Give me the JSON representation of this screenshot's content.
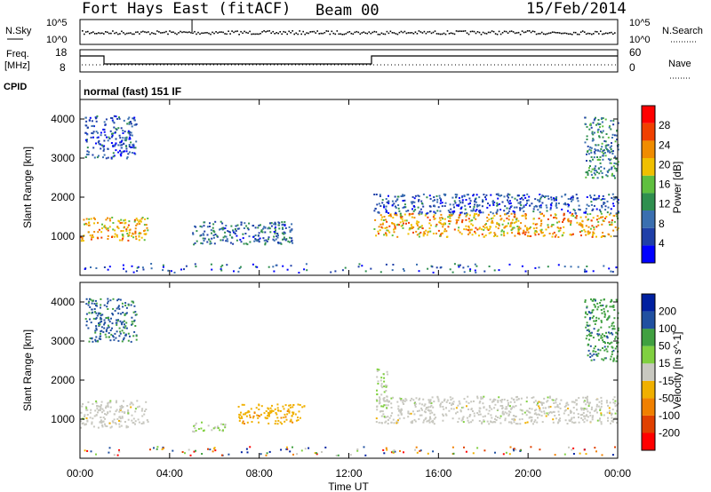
{
  "header": {
    "station": "Fort Hays East (fitACF)",
    "beam": "Beam 00",
    "date": "15/Feb/2014"
  },
  "top_panels": {
    "noise": {
      "left_label": "N.Sky",
      "left_ticks": [
        "10^5",
        "10^0"
      ],
      "right_label": "N.Search",
      "right_ticks": [
        "10^5",
        "10^0"
      ]
    },
    "freq": {
      "left_label_1": "Freq.",
      "left_label_2": "[MHz]",
      "left_ticks": [
        "18",
        "8"
      ],
      "right_label": "Nave",
      "right_ticks": [
        "60",
        "0"
      ]
    },
    "cpid": {
      "label": "CPID",
      "text": "normal (fast) 151 IF"
    }
  },
  "colors": {
    "power": [
      "#0000ff",
      "#1f3fa8",
      "#3a6fb0",
      "#2f8f4f",
      "#5fbf3f",
      "#f0c000",
      "#f08c00",
      "#f04000",
      "#ff0000"
    ],
    "velocity": [
      "#ff0000",
      "#e04000",
      "#f08000",
      "#f0b000",
      "#c8c8c0",
      "#80d040",
      "#40a040",
      "#2050a0",
      "#0020a0"
    ]
  },
  "chart_data": [
    {
      "type": "heatmap",
      "name": "power-panel",
      "ylabel": "Slant Range [km]",
      "xlabel": "",
      "xlim": [
        "00:00",
        "24:00"
      ],
      "ylim": [
        0,
        4500
      ],
      "y_ticks": [
        1000,
        2000,
        3000,
        4000
      ],
      "colorbar": {
        "label": "Power [dB]",
        "ticks": [
          "4",
          "8",
          "12",
          "16",
          "20",
          "24",
          "28"
        ],
        "range": [
          0,
          30
        ]
      },
      "regions": [
        {
          "t_start": 0.0,
          "t_end": 3.0,
          "r_min": 900,
          "r_max": 1500,
          "value": 20
        },
        {
          "t_start": 0.2,
          "t_end": 2.5,
          "r_min": 3000,
          "r_max": 4100,
          "value": 6
        },
        {
          "t_start": 5.0,
          "t_end": 9.5,
          "r_min": 800,
          "r_max": 1400,
          "value": 8
        },
        {
          "t_start": 13.1,
          "t_end": 24.0,
          "r_min": 1000,
          "r_max": 1600,
          "value": 20
        },
        {
          "t_start": 13.1,
          "t_end": 24.0,
          "r_min": 1600,
          "r_max": 2100,
          "value": 6
        },
        {
          "t_start": 22.5,
          "t_end": 24.0,
          "r_min": 2500,
          "r_max": 4100,
          "value": 10
        }
      ]
    },
    {
      "type": "heatmap",
      "name": "velocity-panel",
      "ylabel": "Slant Range [km]",
      "xlabel": "Time UT",
      "x_ticks": [
        "00:00",
        "04:00",
        "08:00",
        "12:00",
        "16:00",
        "20:00",
        "00:00"
      ],
      "xlim": [
        "00:00",
        "24:00"
      ],
      "ylim": [
        0,
        4500
      ],
      "y_ticks": [
        1000,
        2000,
        3000,
        4000
      ],
      "colorbar": {
        "label": "Velocity [m s^-1]",
        "ticks": [
          "-200",
          "-100",
          "-50",
          "-15",
          "15",
          "50",
          "100",
          "200"
        ],
        "range": [
          -250,
          250
        ]
      },
      "regions": [
        {
          "t_start": 0.0,
          "t_end": 3.0,
          "r_min": 800,
          "r_max": 1500,
          "value": 0
        },
        {
          "t_start": 0.2,
          "t_end": 2.5,
          "r_min": 3000,
          "r_max": 4100,
          "value": 150
        },
        {
          "t_start": 5.0,
          "t_end": 6.5,
          "r_min": 700,
          "r_max": 950,
          "value": 30
        },
        {
          "t_start": 7.0,
          "t_end": 10.0,
          "r_min": 900,
          "r_max": 1400,
          "value": -60
        },
        {
          "t_start": 13.2,
          "t_end": 24.0,
          "r_min": 900,
          "r_max": 1600,
          "value": 0
        },
        {
          "t_start": 13.2,
          "t_end": 13.7,
          "r_min": 1300,
          "r_max": 2300,
          "value": 30
        },
        {
          "t_start": 22.5,
          "t_end": 24.0,
          "r_min": 2500,
          "r_max": 4100,
          "value": 120
        }
      ]
    }
  ],
  "axis_labels": {
    "x_ticks": [
      "00:00",
      "04:00",
      "08:00",
      "12:00",
      "16:00",
      "20:00",
      "00:00"
    ],
    "xlabel": "Time UT",
    "ylabel": "Slant Range [km]",
    "y_ticks": [
      "1000",
      "2000",
      "3000",
      "4000"
    ],
    "power_label": "Power [dB]",
    "velocity_label": "Velocity [m s^-1]"
  }
}
